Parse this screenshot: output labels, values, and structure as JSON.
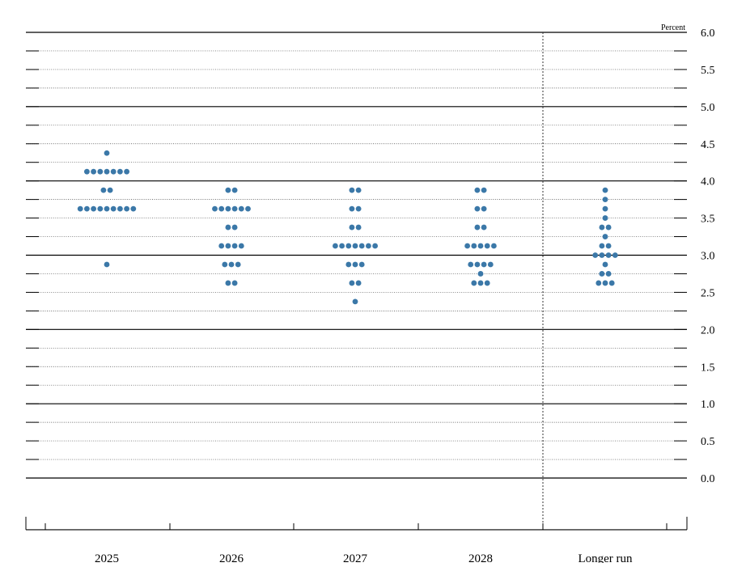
{
  "chart_data": {
    "type": "scatter",
    "title": "",
    "units_label": "Percent",
    "xlabel": "",
    "ylabel": "",
    "categories": [
      "2025",
      "2026",
      "2027",
      "2028",
      "Longer run"
    ],
    "ylim": [
      -0.5,
      6.0
    ],
    "yticks": [
      0.0,
      0.5,
      1.0,
      1.5,
      2.0,
      2.5,
      3.0,
      3.5,
      4.0,
      4.5,
      5.0,
      5.5,
      6.0
    ],
    "ytick_labels": [
      "0.0",
      "0.5",
      "1.0",
      "1.5",
      "2.0",
      "2.5",
      "3.0",
      "3.5",
      "4.0",
      "4.5",
      "5.0",
      "5.5",
      "6.0"
    ],
    "minor_gridline_step": 0.25,
    "grid": true,
    "separator_before": "Longer run",
    "dot_color": "#3b78a8",
    "dots": [
      {
        "category": "2025",
        "counts": [
          [
            4.375,
            1
          ],
          [
            4.125,
            7
          ],
          [
            3.875,
            2
          ],
          [
            3.625,
            9
          ],
          [
            2.875,
            1
          ]
        ]
      },
      {
        "category": "2026",
        "counts": [
          [
            3.875,
            2
          ],
          [
            3.625,
            6
          ],
          [
            3.375,
            2
          ],
          [
            3.125,
            4
          ],
          [
            2.875,
            3
          ],
          [
            2.625,
            2
          ]
        ]
      },
      {
        "category": "2027",
        "counts": [
          [
            3.875,
            2
          ],
          [
            3.625,
            2
          ],
          [
            3.375,
            2
          ],
          [
            3.125,
            7
          ],
          [
            2.875,
            3
          ],
          [
            2.625,
            2
          ],
          [
            2.375,
            1
          ]
        ]
      },
      {
        "category": "2028",
        "counts": [
          [
            3.875,
            2
          ],
          [
            3.625,
            2
          ],
          [
            3.375,
            2
          ],
          [
            3.125,
            5
          ],
          [
            2.875,
            4
          ],
          [
            2.75,
            1
          ],
          [
            2.625,
            3
          ]
        ]
      },
      {
        "category": "Longer run",
        "counts": [
          [
            3.875,
            1
          ],
          [
            3.75,
            1
          ],
          [
            3.625,
            1
          ],
          [
            3.5,
            1
          ],
          [
            3.375,
            2
          ],
          [
            3.25,
            1
          ],
          [
            3.125,
            2
          ],
          [
            3.0,
            4
          ],
          [
            2.875,
            1
          ],
          [
            2.75,
            2
          ],
          [
            2.625,
            3
          ]
        ]
      }
    ]
  }
}
